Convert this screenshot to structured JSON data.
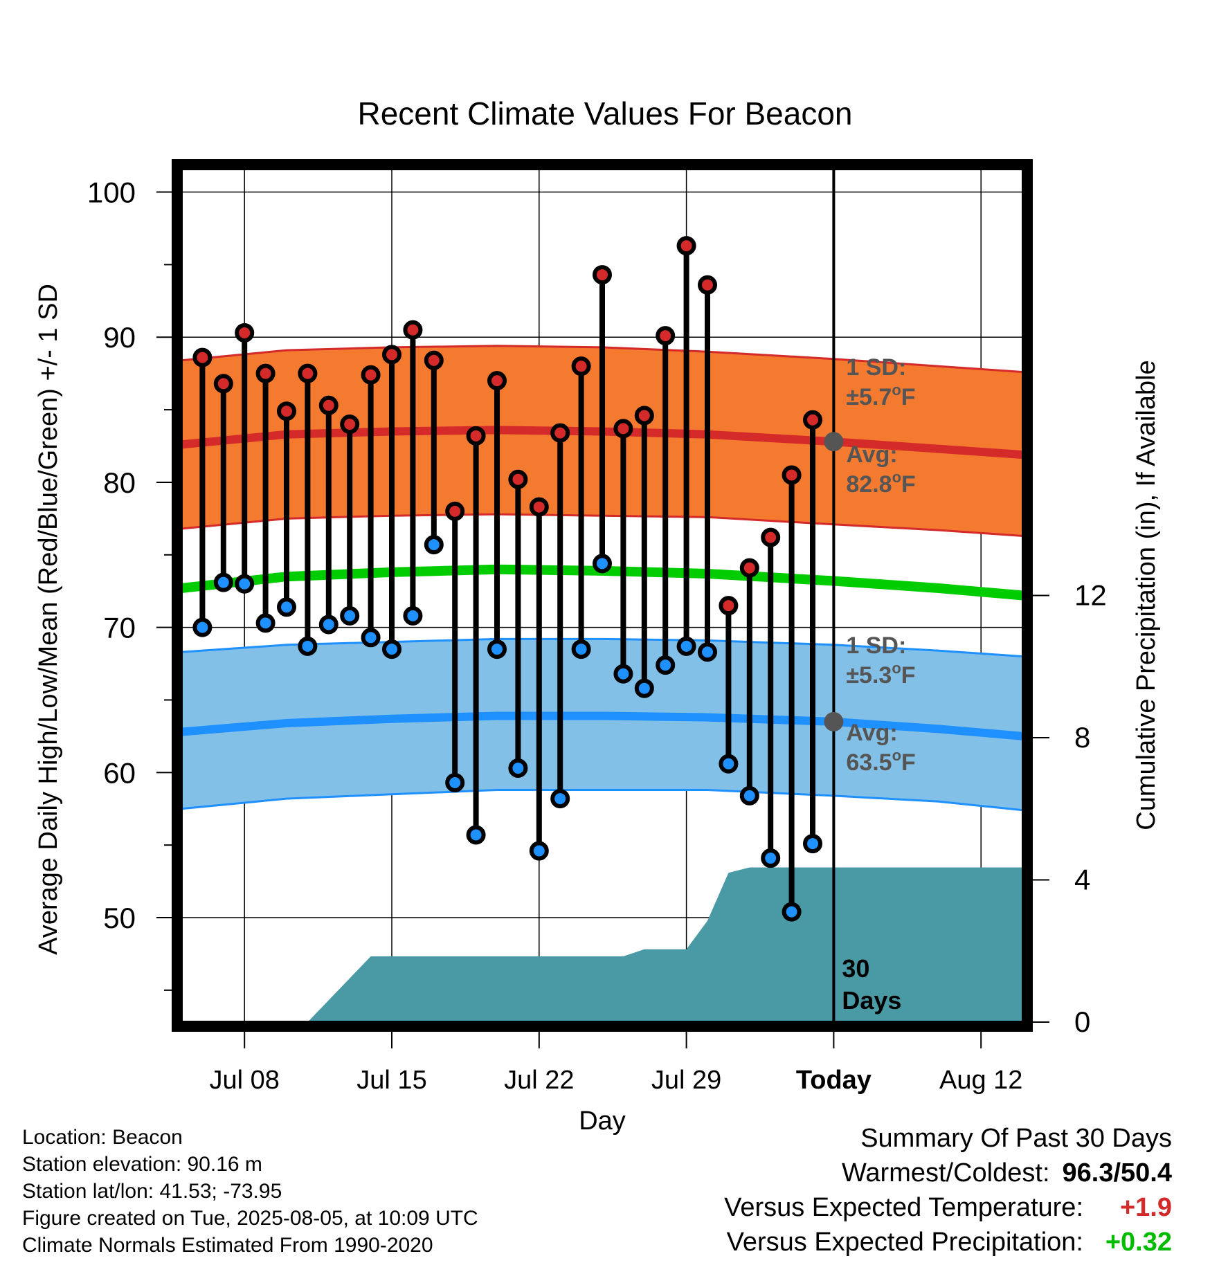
{
  "chart_data": {
    "type": "line",
    "title": "Recent Climate Values For Beacon",
    "xlabel": "Day",
    "ylabel": "Average Daily High/Low/Mean (Red/Blue/Green) +/- 1 SD",
    "y2label": "Cumulative Precipitation (in), If Available",
    "x_tick_labels": [
      "Jul 08",
      "Jul 15",
      "Jul 22",
      "Jul 29",
      "Today",
      "Aug 12"
    ],
    "x_tick_dates": [
      "2025-07-08",
      "2025-07-15",
      "2025-07-22",
      "2025-07-29",
      "2025-08-05",
      "2025-08-12"
    ],
    "xlim": [
      "2025-07-05",
      "2025-08-14"
    ],
    "today": "2025-08-05",
    "ylim": [
      42.8,
      101.6
    ],
    "y_ticks": [
      50,
      60,
      70,
      80,
      90,
      100
    ],
    "y2lim": [
      0,
      24
    ],
    "y2_ticks": [
      0,
      4,
      8,
      12
    ],
    "grid": true,
    "dates": [
      "2025-07-06",
      "2025-07-07",
      "2025-07-08",
      "2025-07-09",
      "2025-07-10",
      "2025-07-11",
      "2025-07-12",
      "2025-07-13",
      "2025-07-14",
      "2025-07-15",
      "2025-07-16",
      "2025-07-17",
      "2025-07-18",
      "2025-07-19",
      "2025-07-20",
      "2025-07-21",
      "2025-07-22",
      "2025-07-23",
      "2025-07-24",
      "2025-07-25",
      "2025-07-26",
      "2025-07-27",
      "2025-07-28",
      "2025-07-29",
      "2025-07-30",
      "2025-07-31",
      "2025-08-01",
      "2025-08-02",
      "2025-08-03",
      "2025-08-04"
    ],
    "series": [
      {
        "name": "Daily High",
        "color": "#d42a2a",
        "values": [
          88.6,
          86.8,
          90.3,
          87.5,
          84.9,
          87.5,
          85.3,
          84.0,
          87.4,
          88.8,
          90.5,
          88.4,
          78.0,
          83.2,
          87.0,
          80.2,
          78.3,
          83.4,
          88.0,
          94.3,
          83.7,
          84.6,
          90.1,
          96.3,
          93.6,
          71.5,
          74.1,
          76.2,
          80.5,
          84.3
        ]
      },
      {
        "name": "Daily Low",
        "color": "#1e90ff",
        "values": [
          70.0,
          73.1,
          73.0,
          70.3,
          71.4,
          68.7,
          70.2,
          70.8,
          69.3,
          68.5,
          70.8,
          75.7,
          59.3,
          55.7,
          68.5,
          60.3,
          54.6,
          58.2,
          68.5,
          74.4,
          66.8,
          65.8,
          67.4,
          68.7,
          68.3,
          60.6,
          58.4,
          54.1,
          50.4,
          55.1
        ]
      }
    ],
    "normals": {
      "dates": [
        "2025-07-05",
        "2025-07-10",
        "2025-07-15",
        "2025-07-20",
        "2025-07-25",
        "2025-07-30",
        "2025-08-05",
        "2025-08-10",
        "2025-08-14"
      ],
      "high_avg": [
        82.6,
        83.3,
        83.5,
        83.6,
        83.5,
        83.3,
        82.8,
        82.3,
        81.9
      ],
      "high_sd_upper": [
        88.4,
        89.1,
        89.3,
        89.4,
        89.3,
        89.0,
        88.5,
        88.0,
        87.6
      ],
      "high_sd_lower": [
        76.8,
        77.5,
        77.7,
        77.8,
        77.7,
        77.6,
        77.1,
        76.7,
        76.3
      ],
      "mean_avg": [
        72.7,
        73.5,
        73.8,
        74.0,
        73.9,
        73.7,
        73.2,
        72.7,
        72.2
      ],
      "low_avg": [
        62.8,
        63.4,
        63.7,
        63.9,
        63.9,
        63.8,
        63.5,
        63.0,
        62.5
      ],
      "low_sd_upper": [
        68.3,
        68.8,
        69.0,
        69.2,
        69.2,
        69.1,
        68.8,
        68.4,
        68.0
      ],
      "low_sd_lower": [
        57.5,
        58.2,
        58.5,
        58.8,
        58.8,
        58.8,
        58.4,
        58.0,
        57.4
      ]
    },
    "precipitation": {
      "dates": [
        "2025-07-11",
        "2025-07-14",
        "2025-07-26",
        "2025-07-27",
        "2025-07-29",
        "2025-07-30",
        "2025-07-31",
        "2025-08-01",
        "2025-08-14"
      ],
      "cumulative_in": [
        0.0,
        1.85,
        1.85,
        2.05,
        2.05,
        2.85,
        4.2,
        4.35,
        4.35
      ]
    },
    "annotations": {
      "high_sd_label": "1 SD:",
      "high_sd_value": "±5.7",
      "high_avg_label": "Avg:",
      "high_avg_value": "82.8",
      "low_sd_label": "1 SD:",
      "low_sd_value": "±5.3",
      "low_avg_label": "Avg:",
      "low_avg_value": "63.5",
      "degree_unit": "o",
      "unit_letter": "F",
      "days_label_1": "30",
      "days_label_2": "Days"
    },
    "colors": {
      "high_band": "#f47a30",
      "high_band_edge": "#d42a2a",
      "high_line": "#d42a2a",
      "low_band": "#82c0e8",
      "low_band_edge": "#1e90ff",
      "low_line": "#1e90ff",
      "mean_line": "#00cc00",
      "precip_fill": "#4a9aa5",
      "annotation_text": "#555555",
      "today_marker": "#555555"
    }
  },
  "footer": {
    "location": "Location: Beacon",
    "elevation": "Station elevation: 90.16 m",
    "latlon": "Station lat/lon: 41.53; -73.95",
    "created": "Figure created on Tue, 2025-08-05, at 10:09 UTC",
    "normals": "Climate Normals Estimated From 1990-2020"
  },
  "summary": {
    "heading": "Summary Of Past 30 Days",
    "warmest_label": "Warmest/Coldest:",
    "warmest_value": "96.3/50.4",
    "temp_label": "Versus Expected Temperature:",
    "temp_value": "+1.9",
    "temp_color": "#d42a2a",
    "precip_label": "Versus Expected Precipitation:",
    "precip_value": "+0.32",
    "precip_color": "#00bb00"
  }
}
